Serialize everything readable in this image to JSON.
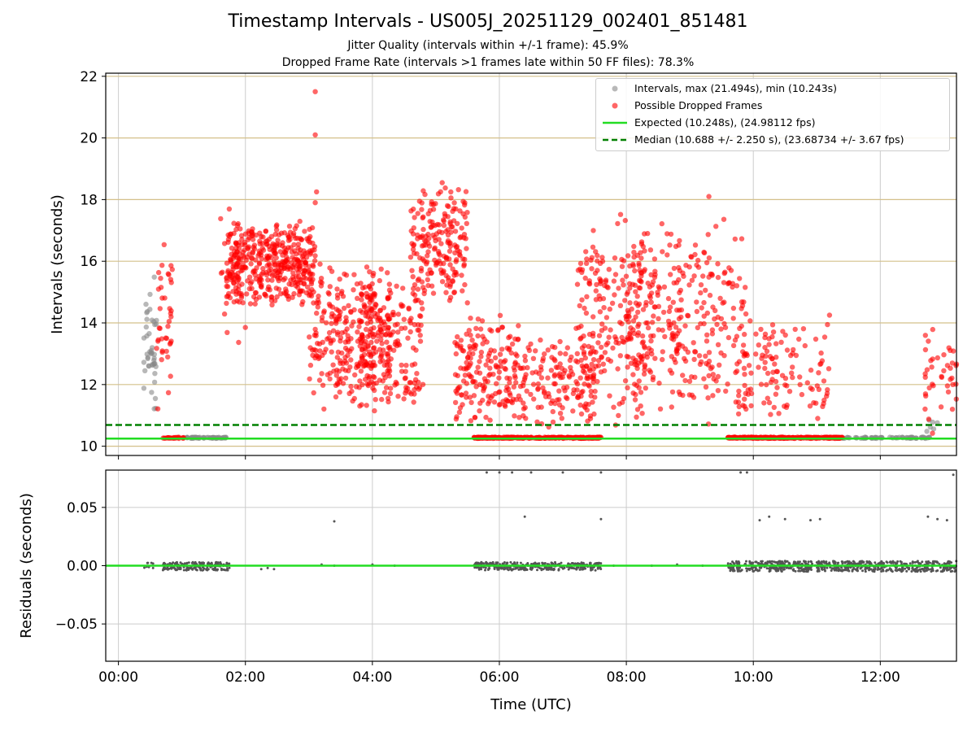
{
  "title": "Timestamp Intervals - US005J_20251129_002401_851481",
  "subtitle1": "Jitter Quality (intervals within +/-1 frame): 45.9%",
  "subtitle2": "Dropped Frame Rate (intervals >1 frames late within 50 FF files): 78.3%",
  "colors": {
    "intervals": "#888888",
    "dropped": "#ff0000",
    "expected": "#22dd22",
    "median": "#008000",
    "residuals": "#555555",
    "hgrid_top": "#d4c08a",
    "grid": "#cccccc"
  },
  "legend": {
    "intervals": "Intervals, max (21.494s), min (10.243s)",
    "dropped": "Possible Dropped Frames",
    "expected": "Expected (10.248s), (24.98112 fps)",
    "median": "Median (10.688 +/- 2.250 s), (23.68734 +/- 3.67 fps)"
  },
  "chart_data": [
    {
      "type": "scatter",
      "title": "Timestamp Intervals - US005J_20251129_002401_851481",
      "xlabel": "",
      "ylabel": "Intervals (seconds)",
      "xlim": [
        -0.2,
        13.2
      ],
      "ylim": [
        9.7,
        22.1
      ],
      "yticks": [
        10,
        12,
        14,
        16,
        18,
        20,
        22
      ],
      "ytick_labels": [
        "10",
        "12",
        "14",
        "16",
        "18",
        "20",
        "22"
      ],
      "reference_lines": {
        "expected": 10.248,
        "median": 10.688
      },
      "max_interval": 21.494,
      "min_interval": 10.243,
      "series": [
        {
          "name": "Intervals, max (21.494s), min (10.243s)",
          "clusters": [
            {
              "x": [
                0.4,
                0.6
              ],
              "y": [
                10.3,
                15.9
              ],
              "n": 45
            },
            {
              "x": [
                1.0,
                1.7
              ],
              "y": [
                10.25,
                10.3
              ],
              "n": 60
            },
            {
              "x": [
                11.3,
                12.8
              ],
              "y": [
                10.25,
                10.3
              ],
              "n": 80
            },
            {
              "x": [
                12.7,
                12.9
              ],
              "y": [
                10.3,
                11.3
              ],
              "n": 6
            }
          ]
        },
        {
          "name": "Possible Dropped Frames",
          "clusters": [
            {
              "x": [
                0.6,
                0.85
              ],
              "y": [
                10.5,
                16.7
              ],
              "n": 40
            },
            {
              "x": [
                0.7,
                1.05
              ],
              "y": [
                10.25,
                10.3
              ],
              "n": 25
            },
            {
              "x": [
                1.7,
                3.1
              ],
              "y": [
                14.5,
                17.4
              ],
              "n": 420
            },
            {
              "x": [
                1.6,
                2.0
              ],
              "y": [
                12.8,
                18.2
              ],
              "n": 20
            },
            {
              "x": [
                3.0,
                4.3
              ],
              "y": [
                11.0,
                16.0
              ],
              "n": 300
            },
            {
              "x": [
                3.8,
                4.8
              ],
              "y": [
                11.0,
                15.5
              ],
              "n": 160
            },
            {
              "x": [
                4.6,
                5.5
              ],
              "y": [
                14.5,
                18.6
              ],
              "n": 200
            },
            {
              "x": [
                5.3,
                6.3
              ],
              "y": [
                10.5,
                14.5
              ],
              "n": 180
            },
            {
              "x": [
                5.6,
                7.6
              ],
              "y": [
                10.25,
                10.3
              ],
              "n": 320
            },
            {
              "x": [
                6.3,
                7.5
              ],
              "y": [
                10.5,
                13.5
              ],
              "n": 140
            },
            {
              "x": [
                7.2,
                8.3
              ],
              "y": [
                10.6,
                17.7
              ],
              "n": 210
            },
            {
              "x": [
                8.0,
                9.9
              ],
              "y": [
                10.6,
                17.5
              ],
              "n": 300
            },
            {
              "x": [
                9.6,
                11.4
              ],
              "y": [
                10.25,
                10.3
              ],
              "n": 280
            },
            {
              "x": [
                9.7,
                11.2
              ],
              "y": [
                10.6,
                14.3
              ],
              "n": 120
            },
            {
              "x": [
                12.7,
                13.2
              ],
              "y": [
                10.25,
                14.0
              ],
              "n": 40
            }
          ],
          "points": [
            {
              "x": 3.1,
              "y": 21.5
            },
            {
              "x": 3.1,
              "y": 20.1
            },
            {
              "x": 3.12,
              "y": 18.25
            },
            {
              "x": 3.1,
              "y": 17.9
            },
            {
              "x": 9.3,
              "y": 18.1
            },
            {
              "x": 5.1,
              "y": 18.55
            },
            {
              "x": 11.2,
              "y": 14.25
            }
          ]
        }
      ]
    },
    {
      "type": "scatter",
      "title": "",
      "xlabel": "Time (UTC)",
      "ylabel": "Residuals (seconds)",
      "xlim": [
        -0.2,
        13.2
      ],
      "ylim": [
        -0.082,
        0.082
      ],
      "yticks": [
        -0.05,
        0.0,
        0.05
      ],
      "ytick_labels": [
        "−0.05",
        "0.00",
        "0.05"
      ],
      "xticks": [
        0,
        2,
        4,
        6,
        8,
        10,
        12
      ],
      "xtick_labels": [
        "00:00",
        "02:00",
        "04:00",
        "06:00",
        "08:00",
        "10:00",
        "12:00"
      ],
      "reference_line": 0.0,
      "series": [
        {
          "name": "Residuals",
          "clusters": [
            {
              "x": [
                0.4,
                0.55
              ],
              "y": [
                -0.003,
                0.003
              ],
              "n": 8
            },
            {
              "x": [
                0.7,
                1.75
              ],
              "y": [
                -0.004,
                0.003
              ],
              "n": 200
            },
            {
              "x": [
                5.6,
                7.6
              ],
              "y": [
                -0.004,
                0.003
              ],
              "n": 350
            },
            {
              "x": [
                9.6,
                13.2
              ],
              "y": [
                -0.005,
                0.004
              ],
              "n": 700
            }
          ],
          "points": [
            {
              "x": 2.25,
              "y": -0.003
            },
            {
              "x": 2.35,
              "y": -0.002
            },
            {
              "x": 2.45,
              "y": -0.003
            },
            {
              "x": 3.2,
              "y": 0.001
            },
            {
              "x": 3.4,
              "y": 0.0
            },
            {
              "x": 4.0,
              "y": 0.001
            },
            {
              "x": 4.35,
              "y": 0.0
            },
            {
              "x": 7.8,
              "y": 0.0
            },
            {
              "x": 8.4,
              "y": 0.0
            },
            {
              "x": 8.8,
              "y": 0.001
            },
            {
              "x": 9.2,
              "y": 0.0
            },
            {
              "x": 3.4,
              "y": 0.038
            },
            {
              "x": 6.4,
              "y": 0.042
            },
            {
              "x": 7.6,
              "y": 0.04
            },
            {
              "x": 10.1,
              "y": 0.039
            },
            {
              "x": 10.25,
              "y": 0.042
            },
            {
              "x": 10.5,
              "y": 0.04
            },
            {
              "x": 10.9,
              "y": 0.039
            },
            {
              "x": 11.05,
              "y": 0.04
            },
            {
              "x": 12.75,
              "y": 0.042
            },
            {
              "x": 12.9,
              "y": 0.04
            },
            {
              "x": 13.05,
              "y": 0.039
            },
            {
              "x": 5.8,
              "y": 0.08
            },
            {
              "x": 6.0,
              "y": 0.08
            },
            {
              "x": 6.2,
              "y": 0.08
            },
            {
              "x": 6.5,
              "y": 0.08
            },
            {
              "x": 7.0,
              "y": 0.08
            },
            {
              "x": 7.6,
              "y": 0.08
            },
            {
              "x": 9.8,
              "y": 0.08
            },
            {
              "x": 9.9,
              "y": 0.08
            },
            {
              "x": 13.15,
              "y": 0.078
            }
          ]
        }
      ]
    }
  ]
}
